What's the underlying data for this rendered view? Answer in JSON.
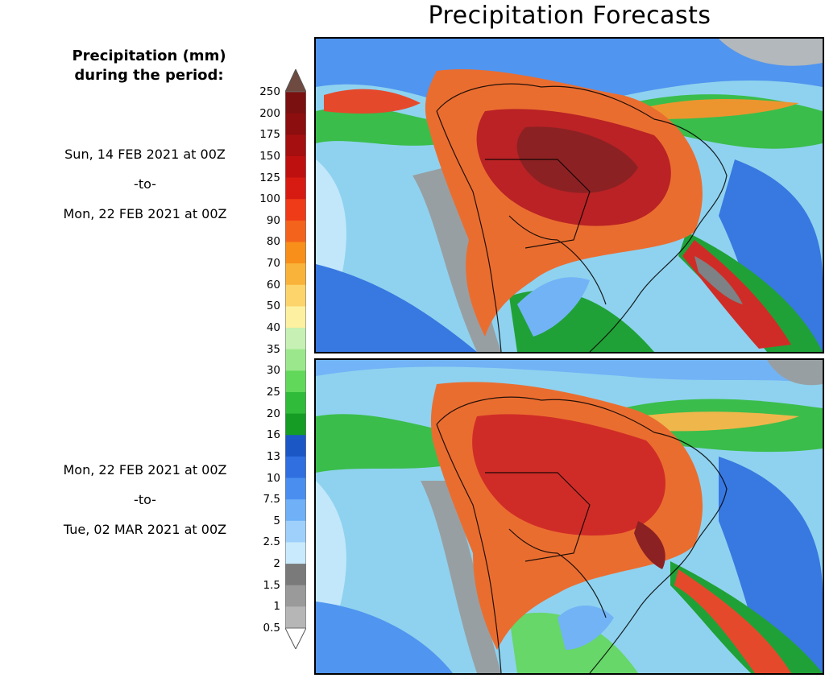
{
  "title": "Precipitation Forecasts",
  "legend": {
    "title_line1": "Precipitation (mm)",
    "title_line2": "during the period:",
    "levels": [
      "250",
      "200",
      "175",
      "150",
      "125",
      "100",
      "90",
      "80",
      "70",
      "60",
      "50",
      "40",
      "35",
      "30",
      "25",
      "20",
      "16",
      "13",
      "10",
      "7.5",
      "5",
      "2.5",
      "2",
      "1.5",
      "1",
      "0.5"
    ],
    "colors": [
      "#7a1010",
      "#8c0e0e",
      "#a50f0f",
      "#bf1010",
      "#d81b12",
      "#ef3b18",
      "#f4631c",
      "#f78f1a",
      "#fab33a",
      "#fcd46b",
      "#fdf0a0",
      "#c6f0b4",
      "#9be88c",
      "#62d85a",
      "#31bb3a",
      "#149c24",
      "#1c57c6",
      "#2f6fe0",
      "#4a8ff0",
      "#6fb0f7",
      "#9fd0fb",
      "#c8eafc",
      "#7a7a7a",
      "#9a9a9a",
      "#b6b6b6",
      "#d2d2d2"
    ],
    "top_color": "#6e4a40"
  },
  "periods": [
    {
      "from": "Sun, 14 FEB 2021 at 00Z",
      "sep": "-to-",
      "to": "Mon, 22 FEB 2021 at 00Z"
    },
    {
      "from": "Mon, 22 FEB 2021 at 00Z",
      "sep": "-to-",
      "to": "Tue, 02 MAR 2021 at 00Z"
    }
  ]
}
